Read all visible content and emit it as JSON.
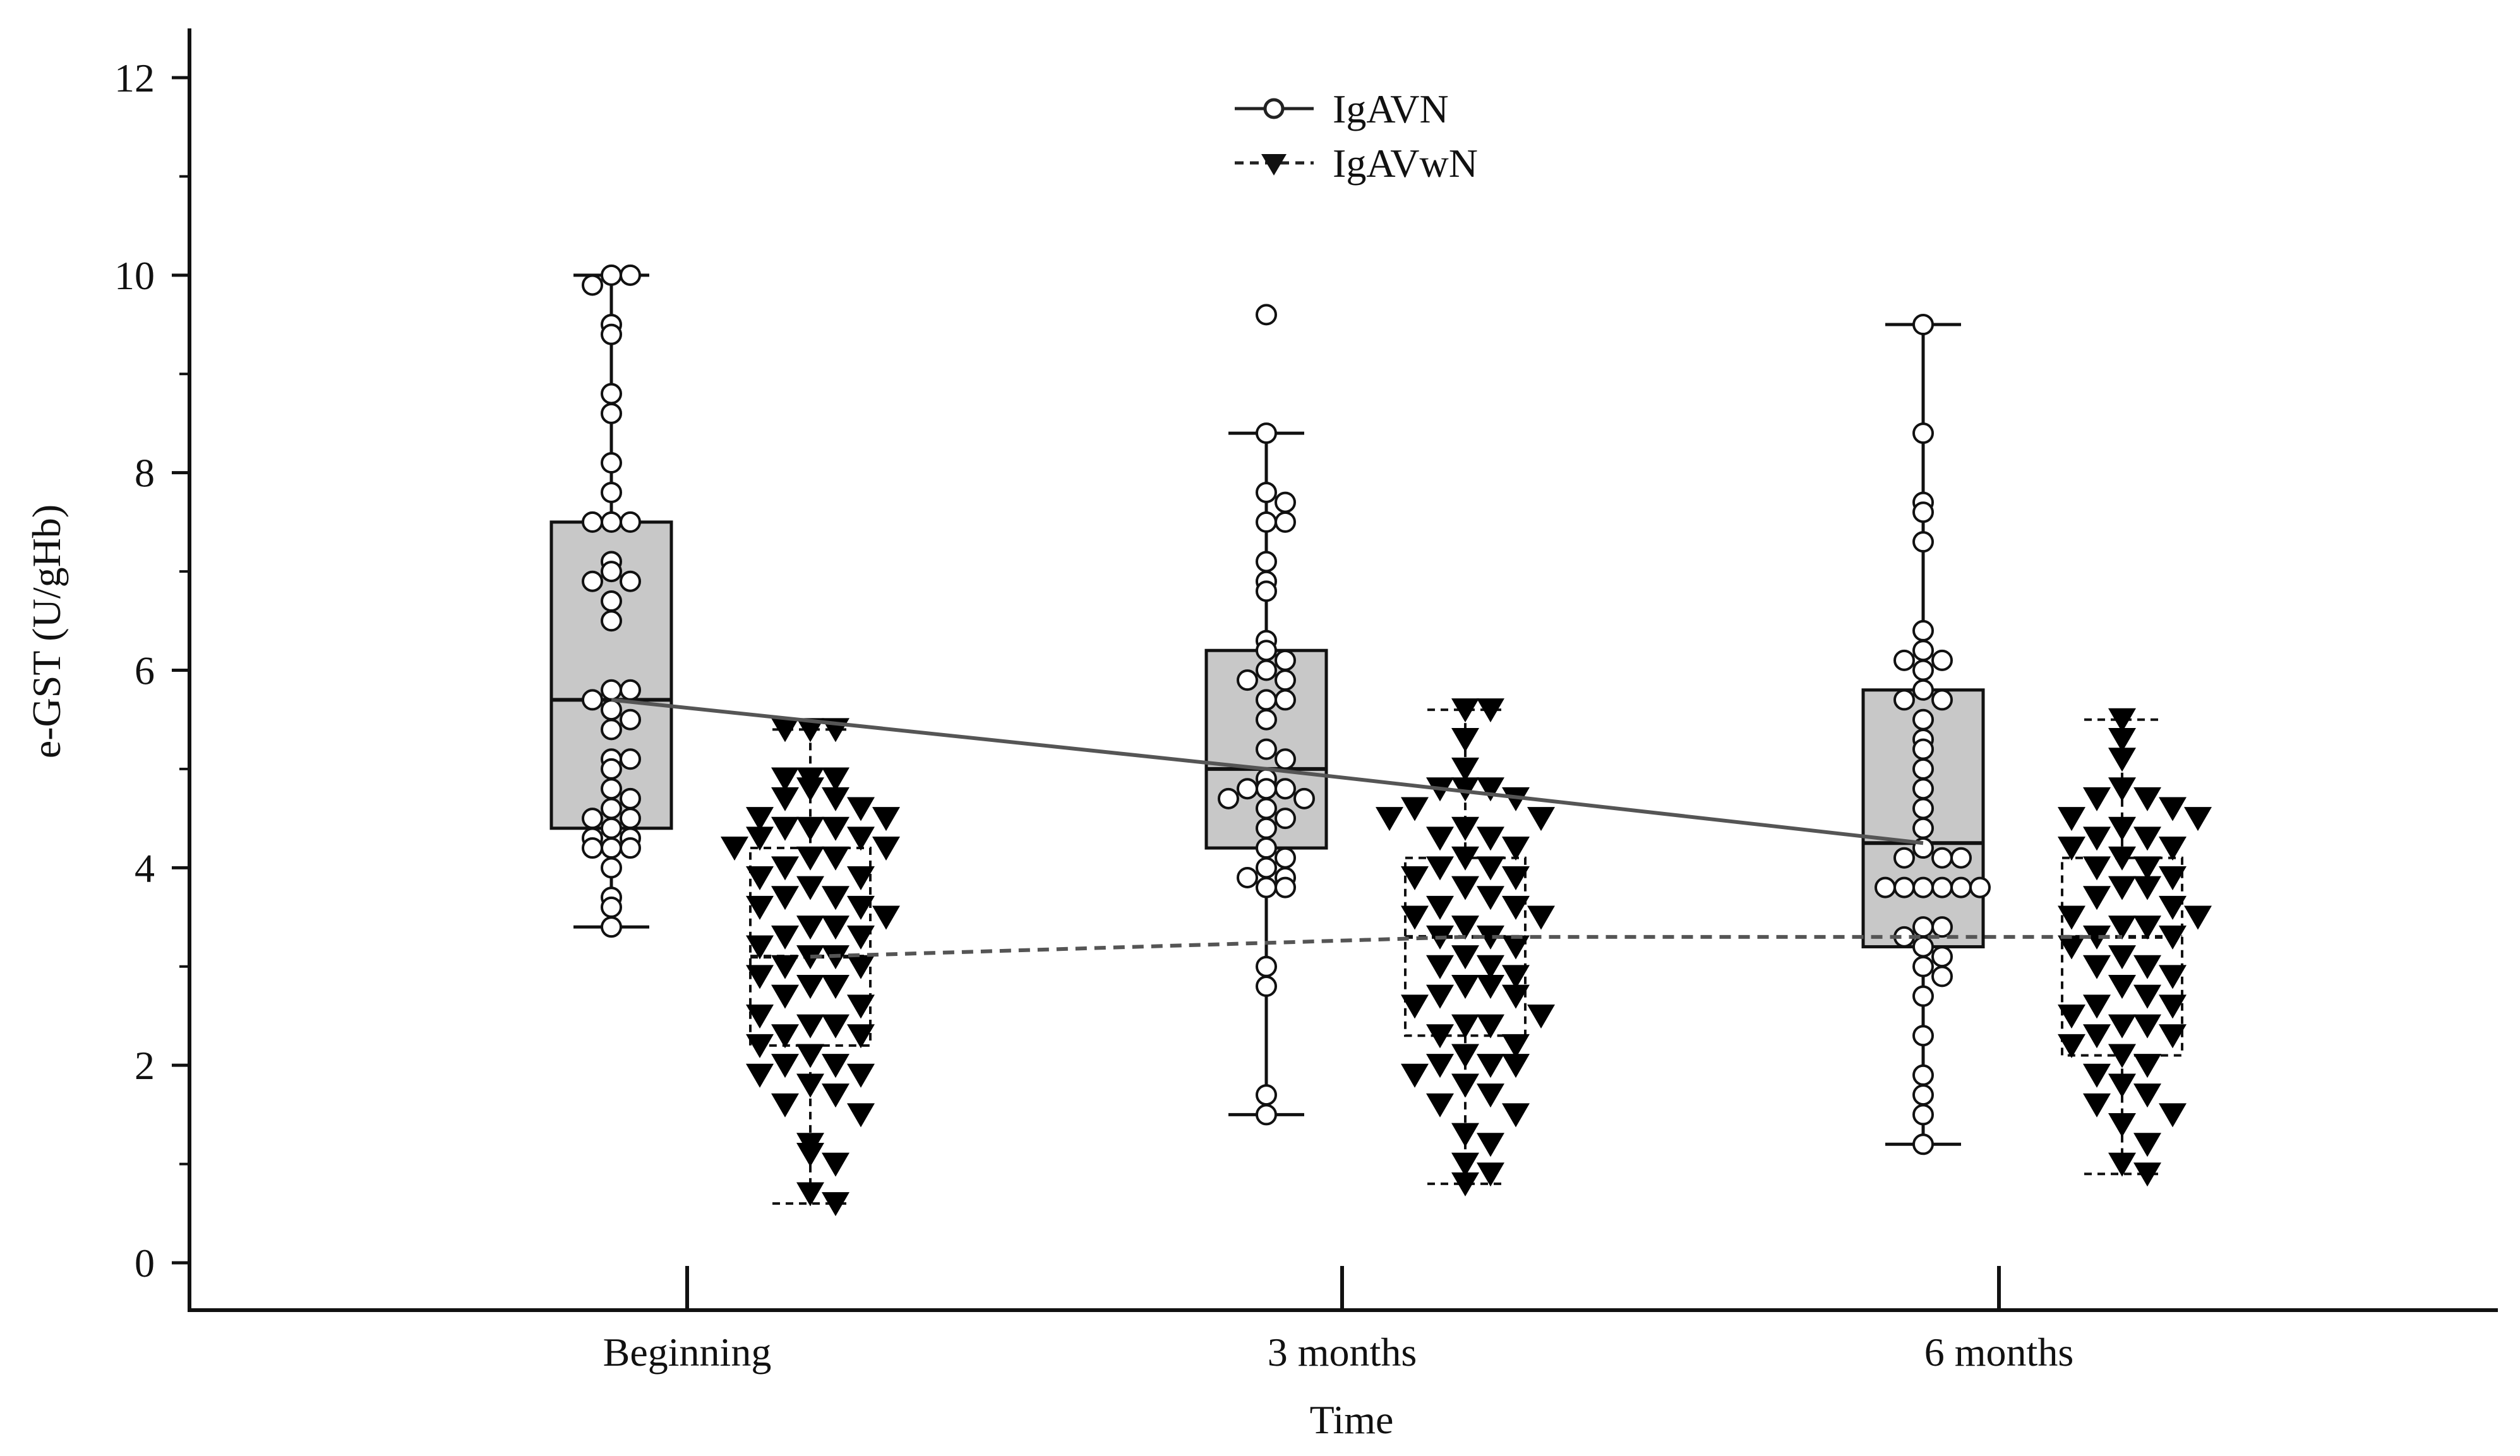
{
  "chart_data": {
    "type": "box",
    "title": "",
    "xlabel": "Time",
    "ylabel": "e-GST (U/gHb)",
    "ylim": [
      0,
      12
    ],
    "yticks": [
      "0",
      "2",
      "4",
      "6",
      "8",
      "10",
      "12"
    ],
    "categories": [
      "Beginning",
      "3 months",
      "6 months"
    ],
    "legend_position": "top-center",
    "series": [
      {
        "name": "IgAVN",
        "marker": "open-circle",
        "box_style": "solid-gray",
        "median_line": "solid",
        "color": "#555555",
        "box_fill": "#c8c8c8",
        "boxes": [
          {
            "category": "Beginning",
            "min": 3.4,
            "q1": 4.4,
            "median": 5.7,
            "q3": 7.5,
            "max": 10.0,
            "points": [
              10.0,
              10.0,
              9.9,
              9.5,
              9.4,
              8.8,
              8.6,
              8.1,
              7.8,
              7.5,
              7.5,
              7.5,
              7.1,
              7.0,
              6.9,
              6.9,
              6.7,
              6.5,
              5.8,
              5.8,
              5.7,
              5.6,
              5.5,
              5.4,
              5.1,
              5.1,
              5.0,
              4.8,
              4.7,
              4.6,
              4.5,
              4.5,
              4.4,
              4.3,
              4.3,
              4.2,
              4.2,
              4.2,
              4.0,
              3.7,
              3.6,
              3.4
            ]
          },
          {
            "category": "3 months",
            "min": 1.5,
            "q1": 4.2,
            "median": 5.0,
            "q3": 6.2,
            "max": 8.4,
            "points": [
              9.6,
              8.4,
              7.8,
              7.7,
              7.5,
              7.5,
              7.1,
              6.9,
              6.8,
              6.3,
              6.2,
              6.1,
              6.0,
              5.9,
              5.9,
              5.7,
              5.7,
              5.5,
              5.2,
              5.1,
              4.9,
              4.8,
              4.8,
              4.8,
              4.7,
              4.7,
              4.6,
              4.5,
              4.4,
              4.2,
              4.1,
              4.0,
              3.9,
              3.9,
              3.8,
              3.8,
              3.0,
              2.8,
              1.7,
              1.5
            ]
          },
          {
            "category": "6 months",
            "min": 1.2,
            "q1": 3.2,
            "median": 4.25,
            "q3": 5.8,
            "max": 9.5,
            "points": [
              9.5,
              8.4,
              7.7,
              7.6,
              7.3,
              6.4,
              6.2,
              6.1,
              6.1,
              6.0,
              5.8,
              5.7,
              5.7,
              5.5,
              5.3,
              5.2,
              5.0,
              4.8,
              4.6,
              4.4,
              4.2,
              4.1,
              4.1,
              4.1,
              3.8,
              3.8,
              3.8,
              3.8,
              3.8,
              3.8,
              3.4,
              3.4,
              3.3,
              3.2,
              3.1,
              3.0,
              2.9,
              2.7,
              2.3,
              1.9,
              1.7,
              1.5,
              1.2
            ]
          }
        ]
      },
      {
        "name": "IgAVwN",
        "marker": "filled-triangle-down",
        "box_style": "dashed-white",
        "median_line": "dashed",
        "color": "#555555",
        "box_fill": "#ffffff",
        "boxes": [
          {
            "category": "Beginning",
            "min": 0.6,
            "q1": 2.2,
            "median": 3.1,
            "q3": 4.2,
            "max": 5.4,
            "points": [
              5.4,
              5.4,
              5.4,
              4.9,
              4.9,
              4.9,
              4.8,
              4.7,
              4.7,
              4.6,
              4.5,
              4.5,
              4.4,
              4.4,
              4.4,
              4.3,
              4.3,
              4.2,
              4.2,
              4.1,
              4.1,
              4.0,
              3.9,
              3.9,
              3.8,
              3.7,
              3.7,
              3.6,
              3.6,
              3.5,
              3.4,
              3.4,
              3.3,
              3.3,
              3.2,
              3.1,
              3.1,
              3.0,
              3.0,
              2.9,
              2.8,
              2.8,
              2.7,
              2.6,
              2.5,
              2.4,
              2.4,
              2.3,
              2.3,
              2.2,
              2.1,
              2.0,
              2.0,
              1.9,
              1.9,
              1.8,
              1.7,
              1.6,
              1.5,
              1.2,
              1.1,
              1.0,
              0.7,
              0.6
            ]
          },
          {
            "category": "3 months",
            "min": 0.8,
            "q1": 2.3,
            "median": 3.3,
            "q3": 4.1,
            "max": 5.6,
            "points": [
              5.6,
              5.6,
              5.3,
              5.0,
              4.8,
              4.8,
              4.8,
              4.7,
              4.6,
              4.5,
              4.5,
              4.4,
              4.3,
              4.3,
              4.2,
              4.1,
              4.0,
              4.0,
              3.9,
              3.9,
              3.8,
              3.7,
              3.6,
              3.6,
              3.5,
              3.5,
              3.4,
              3.3,
              3.3,
              3.2,
              3.1,
              3.0,
              3.0,
              2.9,
              2.8,
              2.8,
              2.7,
              2.7,
              2.6,
              2.5,
              2.4,
              2.4,
              2.3,
              2.2,
              2.1,
              2.0,
              2.0,
              2.0,
              1.9,
              1.8,
              1.7,
              1.6,
              1.5,
              1.3,
              1.2,
              1.0,
              0.9,
              0.8
            ]
          },
          {
            "category": "6 months",
            "min": 0.9,
            "q1": 2.1,
            "median": 3.3,
            "q3": 4.1,
            "max": 5.5,
            "points": [
              5.5,
              5.3,
              5.1,
              4.8,
              4.7,
              4.7,
              4.6,
              4.5,
              4.5,
              4.4,
              4.3,
              4.3,
              4.2,
              4.2,
              4.1,
              4.0,
              4.0,
              3.9,
              3.8,
              3.8,
              3.7,
              3.6,
              3.5,
              3.5,
              3.4,
              3.4,
              3.3,
              3.3,
              3.2,
              3.1,
              3.0,
              3.0,
              2.9,
              2.8,
              2.7,
              2.6,
              2.6,
              2.5,
              2.4,
              2.4,
              2.3,
              2.3,
              2.2,
              2.1,
              2.0,
              1.9,
              1.8,
              1.7,
              1.6,
              1.5,
              1.4,
              1.2,
              1.0,
              0.9
            ]
          }
        ]
      }
    ]
  }
}
